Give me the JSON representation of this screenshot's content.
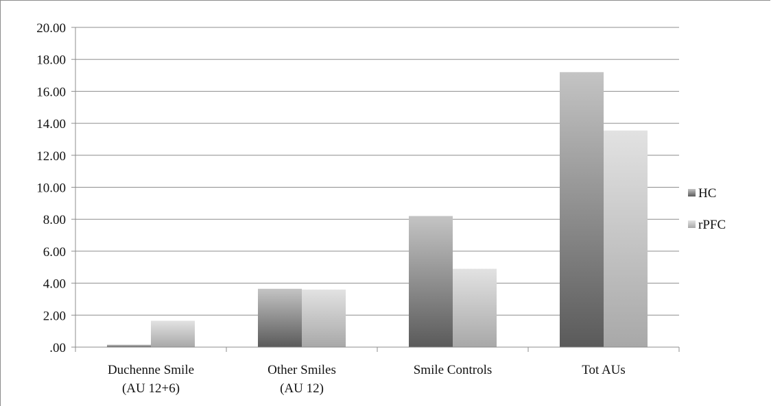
{
  "chart_data": {
    "type": "bar",
    "categories": [
      [
        "Duchenne Smile",
        "(AU 12+6)"
      ],
      [
        "Other Smiles",
        "(AU 12)"
      ],
      [
        "Smile Controls"
      ],
      [
        "Tot AUs"
      ]
    ],
    "series": [
      {
        "name": "HC",
        "values": [
          0.15,
          3.65,
          8.2,
          17.2
        ],
        "color_dark": "#5a5a5a",
        "color_light": "#c4c4c4"
      },
      {
        "name": "rPFC",
        "values": [
          1.65,
          3.6,
          4.9,
          13.55
        ],
        "color_dark": "#a8a8a8",
        "color_light": "#e2e2e2"
      }
    ],
    "ylim": [
      0,
      20
    ],
    "yticks": [
      ".00",
      "2.00",
      "4.00",
      "6.00",
      "8.00",
      "10.00",
      "12.00",
      "14.00",
      "16.00",
      "18.00",
      "20.00"
    ],
    "grid": true,
    "legend_position": "right",
    "xlabel": "",
    "ylabel": "",
    "title": ""
  },
  "legend": {
    "items": [
      {
        "label": "HC",
        "icon": "legend-swatch-dark"
      },
      {
        "label": "rPFC",
        "icon": "legend-swatch-light"
      }
    ]
  }
}
